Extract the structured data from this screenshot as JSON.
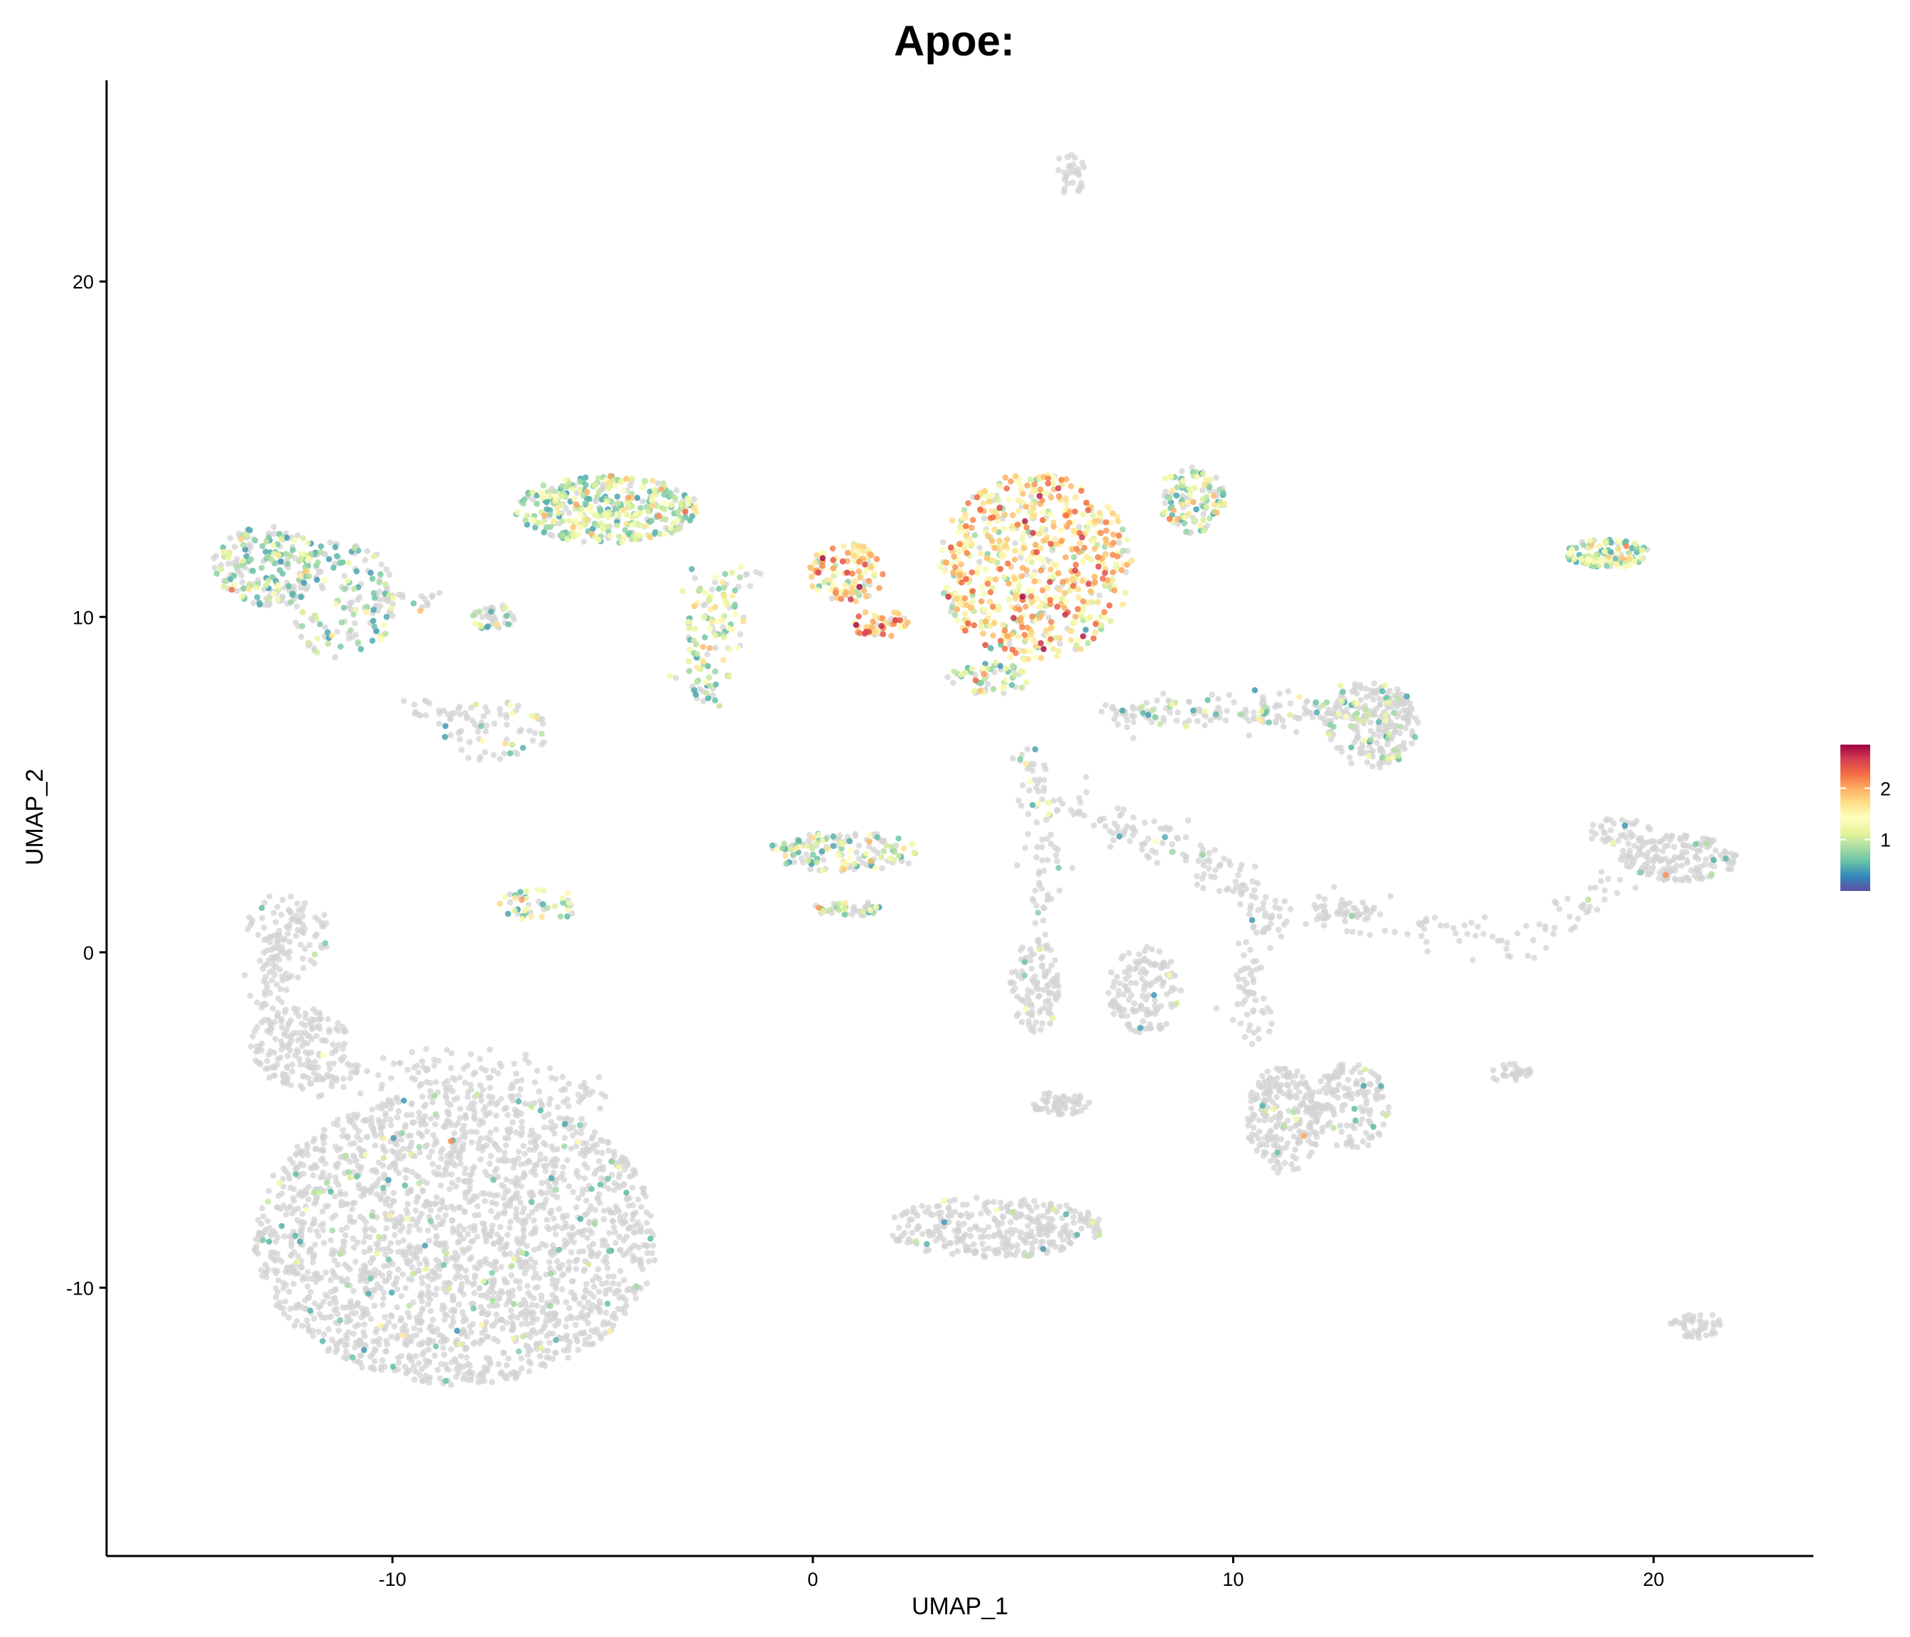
{
  "chart_data": {
    "type": "scatter",
    "title": "Apoe:",
    "xlabel": "UMAP_1",
    "ylabel": "UMAP_2",
    "xlim": [
      -16.8,
      23.8
    ],
    "ylim": [
      -18,
      26
    ],
    "xticks": [
      -10,
      0,
      10,
      20
    ],
    "yticks": [
      -10,
      0,
      10,
      20
    ],
    "xtick_labels": [
      "-10",
      "0",
      "10",
      "20"
    ],
    "ytick_labels": [
      "-10",
      "0",
      "10",
      "20"
    ],
    "grid": false,
    "legend": {
      "placement": "right",
      "kind": "colorbar",
      "range": [
        0,
        2.85
      ],
      "ticks": [
        1,
        2
      ],
      "tick_labels": [
        "1",
        "2"
      ],
      "palette": [
        "#5e4fa2",
        "#3288bd",
        "#66c2a5",
        "#abdda4",
        "#e6f598",
        "#ffffbf",
        "#fee08b",
        "#fdae61",
        "#f46d43",
        "#d53e4f",
        "#9e0142"
      ]
    },
    "colors": {
      "zero_expression": "#d3d3d3"
    },
    "clusters": [
      {
        "cx": -8.5,
        "cy": -8.5,
        "rx": 4.8,
        "ry": 4.4,
        "n": 2200,
        "expr_frac": 0.05,
        "expr_mean": 0.7
      },
      {
        "cx": -12.2,
        "cy": -2.8,
        "rx": 1.2,
        "ry": 1.2,
        "n": 160,
        "expr_frac": 0.0,
        "expr_mean": 0.0
      },
      {
        "cx": -12.5,
        "cy": 0.5,
        "rx": 1.0,
        "ry": 1.3,
        "n": 80,
        "expr_frac": 0.05,
        "expr_mean": 0.8
      },
      {
        "cx": 4.3,
        "cy": -8.2,
        "rx": 2.6,
        "ry": 0.9,
        "n": 320,
        "expr_frac": 0.03,
        "expr_mean": 0.7
      },
      {
        "cx": 21.0,
        "cy": -11.1,
        "rx": 0.6,
        "ry": 0.4,
        "n": 45,
        "expr_frac": 0.0,
        "expr_mean": 0.0
      },
      {
        "cx": 6.1,
        "cy": 23.2,
        "rx": 0.4,
        "ry": 0.6,
        "n": 30,
        "expr_frac": 0.0,
        "expr_mean": 0.0
      },
      {
        "cx": 5.3,
        "cy": 11.5,
        "rx": 2.3,
        "ry": 2.8,
        "n": 700,
        "expr_frac": 0.88,
        "expr_mean": 1.6
      },
      {
        "cx": 4.2,
        "cy": 8.2,
        "rx": 1.0,
        "ry": 0.5,
        "n": 60,
        "expr_frac": 0.7,
        "expr_mean": 0.9
      },
      {
        "cx": 9.0,
        "cy": 13.5,
        "rx": 0.8,
        "ry": 1.0,
        "n": 120,
        "expr_frac": 0.7,
        "expr_mean": 1.0
      },
      {
        "cx": -4.9,
        "cy": 13.2,
        "rx": 2.2,
        "ry": 1.0,
        "n": 380,
        "expr_frac": 0.8,
        "expr_mean": 1.0
      },
      {
        "cx": -2.3,
        "cy": 9.5,
        "rx": 0.7,
        "ry": 1.4,
        "n": 80,
        "expr_frac": 0.8,
        "expr_mean": 1.2
      },
      {
        "cx": 0.8,
        "cy": 11.3,
        "rx": 0.9,
        "ry": 0.9,
        "n": 110,
        "expr_frac": 0.9,
        "expr_mean": 1.6
      },
      {
        "cx": 1.6,
        "cy": 9.8,
        "rx": 0.7,
        "ry": 0.4,
        "n": 50,
        "expr_frac": 0.9,
        "expr_mean": 2.0
      },
      {
        "cx": -13.0,
        "cy": 11.5,
        "rx": 1.3,
        "ry": 1.2,
        "n": 200,
        "expr_frac": 0.55,
        "expr_mean": 0.8
      },
      {
        "cx": -11.2,
        "cy": 10.5,
        "rx": 1.3,
        "ry": 1.8,
        "n": 160,
        "expr_frac": 0.4,
        "expr_mean": 0.8
      },
      {
        "cx": -7.6,
        "cy": 10.0,
        "rx": 0.5,
        "ry": 0.4,
        "n": 40,
        "expr_frac": 0.5,
        "expr_mean": 0.8
      },
      {
        "cx": -7.6,
        "cy": 6.6,
        "rx": 1.3,
        "ry": 0.9,
        "n": 70,
        "expr_frac": 0.2,
        "expr_mean": 0.9
      },
      {
        "cx": 13.3,
        "cy": 6.8,
        "rx": 1.1,
        "ry": 1.3,
        "n": 250,
        "expr_frac": 0.2,
        "expr_mean": 0.8
      },
      {
        "cx": 18.9,
        "cy": 11.9,
        "rx": 1.0,
        "ry": 0.45,
        "n": 110,
        "expr_frac": 0.85,
        "expr_mean": 0.9
      },
      {
        "cx": 0.8,
        "cy": 3.0,
        "rx": 1.9,
        "ry": 0.6,
        "n": 150,
        "expr_frac": 0.5,
        "expr_mean": 0.9
      },
      {
        "cx": 0.8,
        "cy": 1.3,
        "rx": 0.8,
        "ry": 0.25,
        "n": 40,
        "expr_frac": 0.5,
        "expr_mean": 0.9
      },
      {
        "cx": -6.5,
        "cy": 1.4,
        "rx": 1.0,
        "ry": 0.5,
        "n": 45,
        "expr_frac": 0.6,
        "expr_mean": 1.0
      },
      {
        "cx": 20.6,
        "cy": 2.8,
        "rx": 1.4,
        "ry": 0.7,
        "n": 170,
        "expr_frac": 0.05,
        "expr_mean": 0.8
      },
      {
        "cx": 19.2,
        "cy": 3.6,
        "rx": 0.8,
        "ry": 0.4,
        "n": 40,
        "expr_frac": 0.1,
        "expr_mean": 0.8
      },
      {
        "cx": 5.3,
        "cy": -1.0,
        "rx": 0.6,
        "ry": 1.4,
        "n": 110,
        "expr_frac": 0.03,
        "expr_mean": 0.8
      },
      {
        "cx": 7.9,
        "cy": -1.1,
        "rx": 0.9,
        "ry": 1.3,
        "n": 140,
        "expr_frac": 0.03,
        "expr_mean": 0.8
      },
      {
        "cx": 5.9,
        "cy": -4.5,
        "rx": 0.7,
        "ry": 0.35,
        "n": 60,
        "expr_frac": 0.03,
        "expr_mean": 0.8
      },
      {
        "cx": 11.2,
        "cy": -5.0,
        "rx": 0.9,
        "ry": 1.6,
        "n": 230,
        "expr_frac": 0.03,
        "expr_mean": 0.8
      },
      {
        "cx": 12.8,
        "cy": -4.6,
        "rx": 0.9,
        "ry": 1.3,
        "n": 140,
        "expr_frac": 0.03,
        "expr_mean": 0.8
      },
      {
        "cx": 16.6,
        "cy": -3.6,
        "rx": 0.5,
        "ry": 0.3,
        "n": 30,
        "expr_frac": 0.0,
        "expr_mean": 0.0
      },
      {
        "cx": 13.0,
        "cy": 1.2,
        "rx": 0.6,
        "ry": 0.3,
        "n": 25,
        "expr_frac": 0.0,
        "expr_mean": 0.0
      }
    ],
    "trails": [
      {
        "points": [
          [
            7.0,
            7.2
          ],
          [
            12.5,
            7.2
          ]
        ],
        "n": 150,
        "spread": 0.25,
        "expr_frac": 0.15,
        "expr_mean": 0.8
      },
      {
        "points": [
          [
            5.0,
            6.0
          ],
          [
            5.6,
            4.0
          ]
        ],
        "n": 40,
        "spread": 0.2,
        "expr_frac": 0.3,
        "expr_mean": 0.8
      },
      {
        "points": [
          [
            6.0,
            4.5
          ],
          [
            7.8,
            3.5
          ],
          [
            10.0,
            2.3
          ],
          [
            11.0,
            0.5
          ]
        ],
        "n": 150,
        "spread": 0.3,
        "expr_frac": 0.03,
        "expr_mean": 0.8
      },
      {
        "points": [
          [
            11.0,
            1.5
          ],
          [
            14.0,
            0.8
          ],
          [
            17.0,
            0.3
          ],
          [
            19.5,
            2.5
          ]
        ],
        "n": 110,
        "spread": 0.3,
        "expr_frac": 0.02,
        "expr_mean": 0.8
      },
      {
        "points": [
          [
            5.5,
            3.5
          ],
          [
            5.4,
            1.0
          ]
        ],
        "n": 40,
        "spread": 0.25,
        "expr_frac": 0.05,
        "expr_mean": 0.8
      },
      {
        "points": [
          [
            10.2,
            0.0
          ],
          [
            10.6,
            -2.8
          ]
        ],
        "n": 50,
        "spread": 0.25,
        "expr_frac": 0.0,
        "expr_mean": 0.0
      },
      {
        "points": [
          [
            -12.0,
            1.5
          ],
          [
            -13.0,
            -0.5
          ],
          [
            -12.8,
            -2.5
          ]
        ],
        "n": 70,
        "spread": 0.25,
        "expr_frac": 0.03,
        "expr_mean": 0.8
      },
      {
        "points": [
          [
            -12.0,
            -3.8
          ],
          [
            -10.0,
            -3.5
          ],
          [
            -7.0,
            -3.8
          ],
          [
            -5.0,
            -4.5
          ]
        ],
        "n": 140,
        "spread": 0.35,
        "expr_frac": 0.02,
        "expr_mean": 0.8
      },
      {
        "points": [
          [
            -10.5,
            10.6
          ],
          [
            -9.0,
            10.5
          ]
        ],
        "n": 25,
        "spread": 0.2,
        "expr_frac": 0.5,
        "expr_mean": 0.8
      },
      {
        "points": [
          [
            -3.0,
            11.0
          ],
          [
            -1.0,
            11.2
          ]
        ],
        "n": 25,
        "spread": 0.2,
        "expr_frac": 0.6,
        "expr_mean": 1.0
      },
      {
        "points": [
          [
            -3.2,
            8.5
          ],
          [
            -2.3,
            7.5
          ]
        ],
        "n": 25,
        "spread": 0.2,
        "expr_frac": 0.5,
        "expr_mean": 0.9
      },
      {
        "points": [
          [
            -9.5,
            7.3
          ],
          [
            -8.5,
            7.1
          ]
        ],
        "n": 20,
        "spread": 0.15,
        "expr_frac": 0.0,
        "expr_mean": 0.0
      }
    ]
  }
}
